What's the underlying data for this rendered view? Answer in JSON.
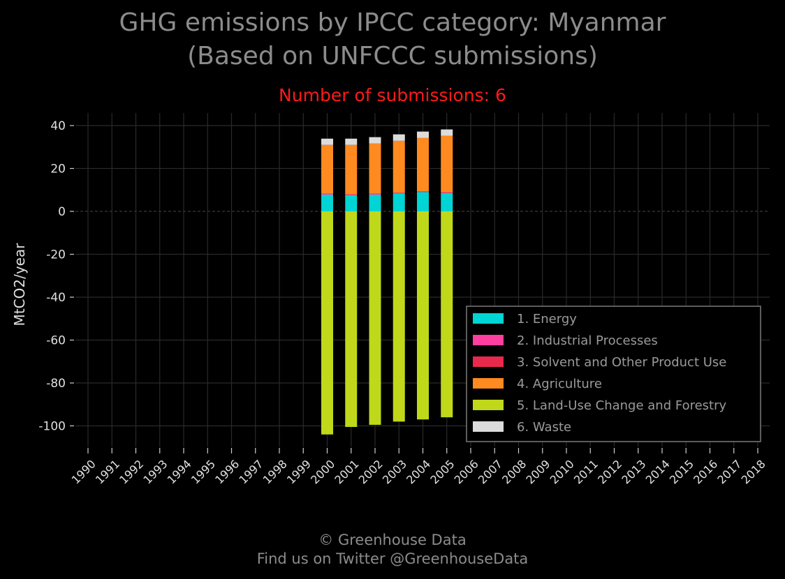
{
  "header": {
    "title_line1": "GHG emissions by IPCC category: Myanmar",
    "title_line2": "(Based on UNFCCC submissions)",
    "subtitle": "Number of submissions: 6"
  },
  "footer": {
    "line1": "© Greenhouse Data",
    "line2": "Find us on Twitter @GreenhouseData"
  },
  "chart_data": {
    "type": "bar",
    "stacked": true,
    "ylabel": "MtCO2/year",
    "xlabel": "",
    "ylim": [
      -110,
      45
    ],
    "xlim": [
      1990,
      2018
    ],
    "yticks": [
      40,
      20,
      0,
      -20,
      -40,
      -60,
      -80,
      -100
    ],
    "ytick_labels": [
      "40",
      "20",
      "0",
      "‑20",
      "‑40",
      "‑60",
      "‑80",
      "‑100"
    ],
    "categories": [
      "1990",
      "1991",
      "1992",
      "1993",
      "1994",
      "1995",
      "1996",
      "1997",
      "1998",
      "1999",
      "2000",
      "2001",
      "2002",
      "2003",
      "2004",
      "2005",
      "2006",
      "2007",
      "2008",
      "2009",
      "2010",
      "2011",
      "2012",
      "2013",
      "2014",
      "2015",
      "2016",
      "2017",
      "2018"
    ],
    "grid": true,
    "legend_position": "lower-right",
    "series": [
      {
        "name": "1. Energy",
        "color": "#00d4d4",
        "x": [
          2000,
          2001,
          2002,
          2003,
          2004,
          2005
        ],
        "values": [
          7.8,
          7.5,
          7.8,
          8.3,
          9.0,
          8.5
        ]
      },
      {
        "name": "2. Industrial Processes",
        "color": "#ff3fa0",
        "x": [
          2000,
          2001,
          2002,
          2003,
          2004,
          2005
        ],
        "values": [
          0.4,
          0.4,
          0.4,
          0.4,
          0.4,
          0.4
        ]
      },
      {
        "name": "3. Solvent and Other Product Use",
        "color": "#e8294b",
        "x": [
          2000,
          2001,
          2002,
          2003,
          2004,
          2005
        ],
        "values": [
          0.0,
          0.0,
          0.0,
          0.0,
          0.0,
          0.0
        ]
      },
      {
        "name": "4. Agriculture",
        "color": "#ff8a1f",
        "x": [
          2000,
          2001,
          2002,
          2003,
          2004,
          2005
        ],
        "values": [
          22.8,
          23.1,
          23.5,
          24.2,
          24.8,
          26.3
        ]
      },
      {
        "name": "5. Land-Use Change and Forestry",
        "color": "#bfd81a",
        "x": [
          2000,
          2001,
          2002,
          2003,
          2004,
          2005
        ],
        "values": [
          -104.0,
          -100.5,
          -99.5,
          -98.0,
          -97.0,
          -96.0
        ]
      },
      {
        "name": "6. Waste",
        "color": "#dcdcdc",
        "x": [
          2000,
          2001,
          2002,
          2003,
          2004,
          2005
        ],
        "values": [
          2.9,
          2.9,
          2.9,
          3.0,
          3.0,
          3.0
        ]
      }
    ]
  }
}
